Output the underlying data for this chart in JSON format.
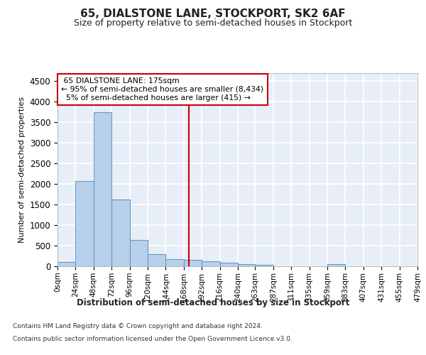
{
  "title": "65, DIALSTONE LANE, STOCKPORT, SK2 6AF",
  "subtitle": "Size of property relative to semi-detached houses in Stockport",
  "xlabel": "Distribution of semi-detached houses by size in Stockport",
  "ylabel": "Number of semi-detached properties",
  "property_label": "65 DIALSTONE LANE: 175sqm",
  "pct_smaller": 95,
  "count_smaller": 8434,
  "pct_larger": 5,
  "count_larger": 415,
  "bin_edges": [
    0,
    24,
    48,
    72,
    96,
    120,
    144,
    168,
    192,
    216,
    240,
    263,
    287,
    311,
    335,
    359,
    383,
    407,
    431,
    455,
    479
  ],
  "bin_labels": [
    "0sqm",
    "24sqm",
    "48sqm",
    "72sqm",
    "96sqm",
    "120sqm",
    "144sqm",
    "168sqm",
    "192sqm",
    "216sqm",
    "240sqm",
    "263sqm",
    "287sqm",
    "311sqm",
    "335sqm",
    "359sqm",
    "383sqm",
    "407sqm",
    "431sqm",
    "455sqm",
    "479sqm"
  ],
  "bar_heights": [
    100,
    2075,
    3750,
    1625,
    640,
    290,
    165,
    155,
    115,
    90,
    55,
    30,
    0,
    0,
    0,
    50,
    0,
    0,
    0,
    0
  ],
  "bar_color": "#b8d0ea",
  "bar_edge_color": "#6699cc",
  "vline_x": 175,
  "vline_color": "#cc0000",
  "ylim": [
    0,
    4700
  ],
  "yticks": [
    0,
    500,
    1000,
    1500,
    2000,
    2500,
    3000,
    3500,
    4000,
    4500
  ],
  "background_color": "#e8eef8",
  "grid_color": "#ffffff",
  "footer_line1": "Contains HM Land Registry data © Crown copyright and database right 2024.",
  "footer_line2": "Contains public sector information licensed under the Open Government Licence v3.0."
}
